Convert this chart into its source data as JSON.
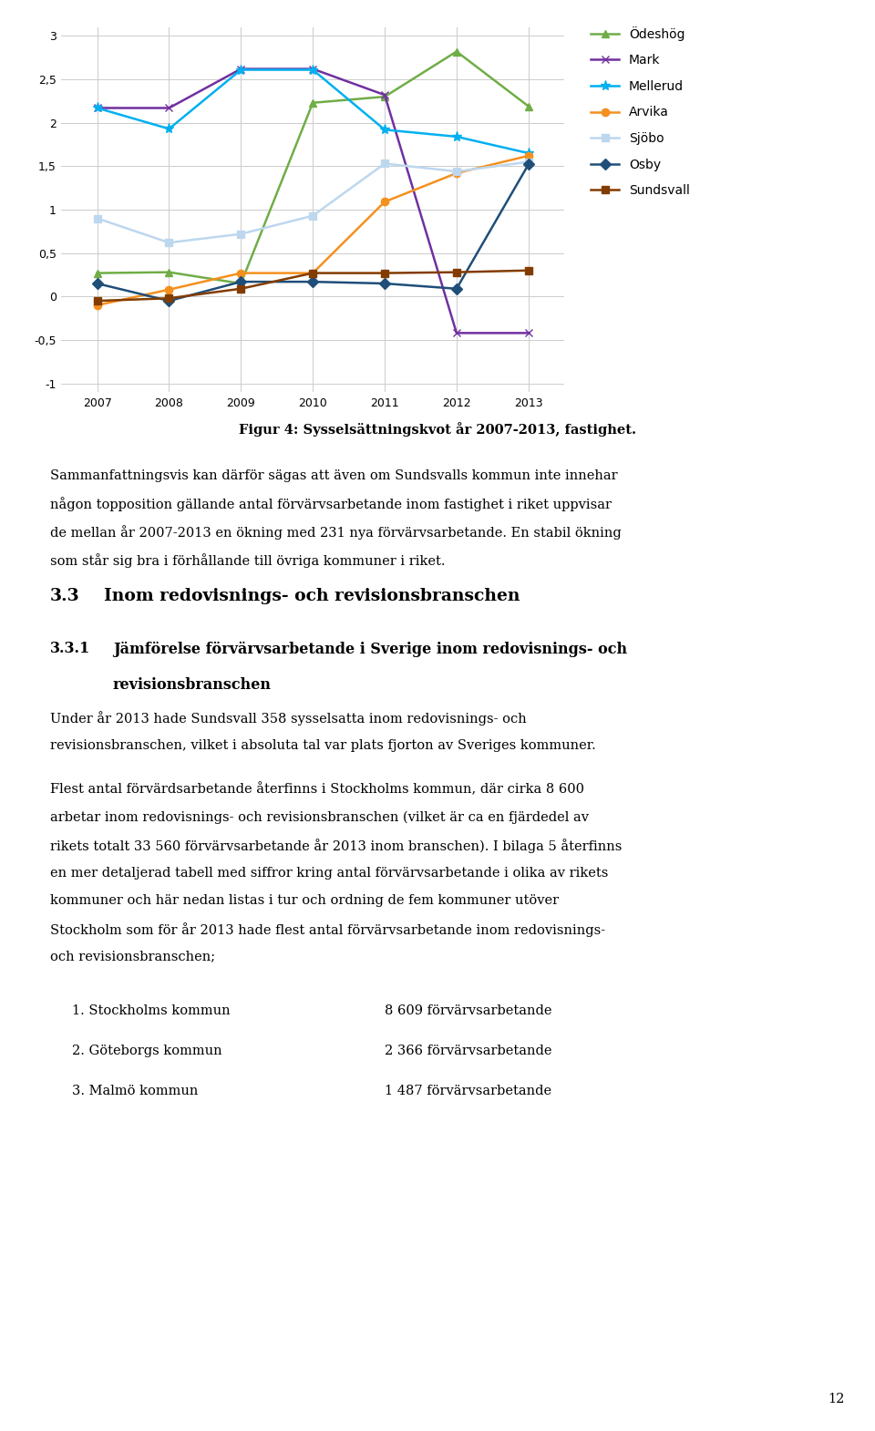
{
  "years": [
    2007,
    2008,
    2009,
    2010,
    2011,
    2012,
    2013
  ],
  "series": {
    "Ödeshög": [
      0.27,
      0.28,
      0.15,
      2.23,
      2.3,
      2.82,
      2.19
    ],
    "Mark": [
      2.17,
      2.17,
      2.62,
      2.62,
      2.32,
      -0.42,
      -0.42
    ],
    "Mellerud": [
      2.17,
      1.93,
      2.61,
      2.61,
      1.92,
      1.84,
      1.65
    ],
    "Arvika": [
      -0.1,
      0.08,
      0.27,
      0.27,
      1.09,
      1.42,
      1.62
    ],
    "Sjöbo": [
      0.9,
      0.62,
      0.72,
      0.93,
      1.53,
      1.44,
      1.55
    ],
    "Osby": [
      0.15,
      -0.05,
      0.17,
      0.17,
      0.15,
      0.09,
      1.52
    ],
    "Sundsvall": [
      -0.05,
      -0.02,
      0.09,
      0.27,
      0.27,
      0.28,
      0.3
    ]
  },
  "colors": {
    "Ödeshög": "#70ad47",
    "Mark": "#7030a0",
    "Mellerud": "#00b0f0",
    "Arvika": "#f4901e",
    "Sjöbo": "#bdd7ee",
    "Osby": "#1f4e79",
    "Sundsvall": "#833c00"
  },
  "markers": {
    "Ödeshög": "^",
    "Mark": "x",
    "Mellerud": "*",
    "Arvika": "o",
    "Sjöbo": "s",
    "Osby": "D",
    "Sundsvall": "s"
  },
  "ylim": [
    -1.1,
    3.1
  ],
  "yticks": [
    -1,
    -0.5,
    0,
    0.5,
    1,
    1.5,
    2,
    2.5,
    3
  ],
  "ytick_labels": [
    "-1",
    "-0,5",
    "0",
    "0,5",
    "1",
    "1,5",
    "2",
    "2,5",
    "3"
  ],
  "fig_caption_normal": "Figur 4: Sysselsättningskvot år 2007-2013, ",
  "fig_caption_bold": "fastighet",
  "fig_caption_end": ".",
  "body_text": [
    "Sammanfattningsvis kan därför sägas att även om Sundsvalls kommun inte innehar",
    "någon topposition gällande antal förvärvsarbetande inom fastighet i riket uppvisar",
    "de mellan år 2007-2013 en ökning med 231 nya förvärvsarbetande. En stabil ökning",
    "som står sig bra i förhållande till övriga kommuner i riket."
  ],
  "sec33_num": "3.3",
  "sec33_title": "Inom redovisnings- och revisionsbranschen",
  "sec331_num": "3.3.1",
  "sec331_title_line1": "Jämförelse förvärvsarbetande i Sverige inom redovisnings- och",
  "sec331_title_line2": "revisionsbranschen",
  "under_lines": [
    "Under år 2013 hade Sundsvall 358 sysselsatta inom redovisnings- och",
    "revisionsbranschen, vilket i absoluta tal var plats fjorton av Sveriges kommuner."
  ],
  "flest_lines": [
    "Flest antal förvärdsarbetande återfinns i Stockholms kommun, där cirka 8 600",
    "arbetar inom redovisnings- och revisionsbranschen (vilket är ca en fjärdedel av",
    "rikets totalt 33 560 förvärvsarbetande år 2013 inom branschen). I bilaga 5 återfinns",
    "en mer detaljerad tabell med siffror kring antal förvärvsarbetande i olika av rikets",
    "kommuner och här nedan listas i tur och ordning de fem kommuner utöver",
    "Stockholm som för år 2013 hade flest antal förvärvsarbetande inom redovisnings-",
    "och revisionsbranschen;"
  ],
  "list_items": [
    [
      "1. Stockholms kommun",
      "8 609 förvärvsarbetande"
    ],
    [
      "2. Göteborgs kommun",
      "2 366 förvärvsarbetande"
    ],
    [
      "3. Malmö kommun",
      "1 487 förvärvsarbetande"
    ]
  ],
  "page_number": "12",
  "bg_color": "#ffffff"
}
